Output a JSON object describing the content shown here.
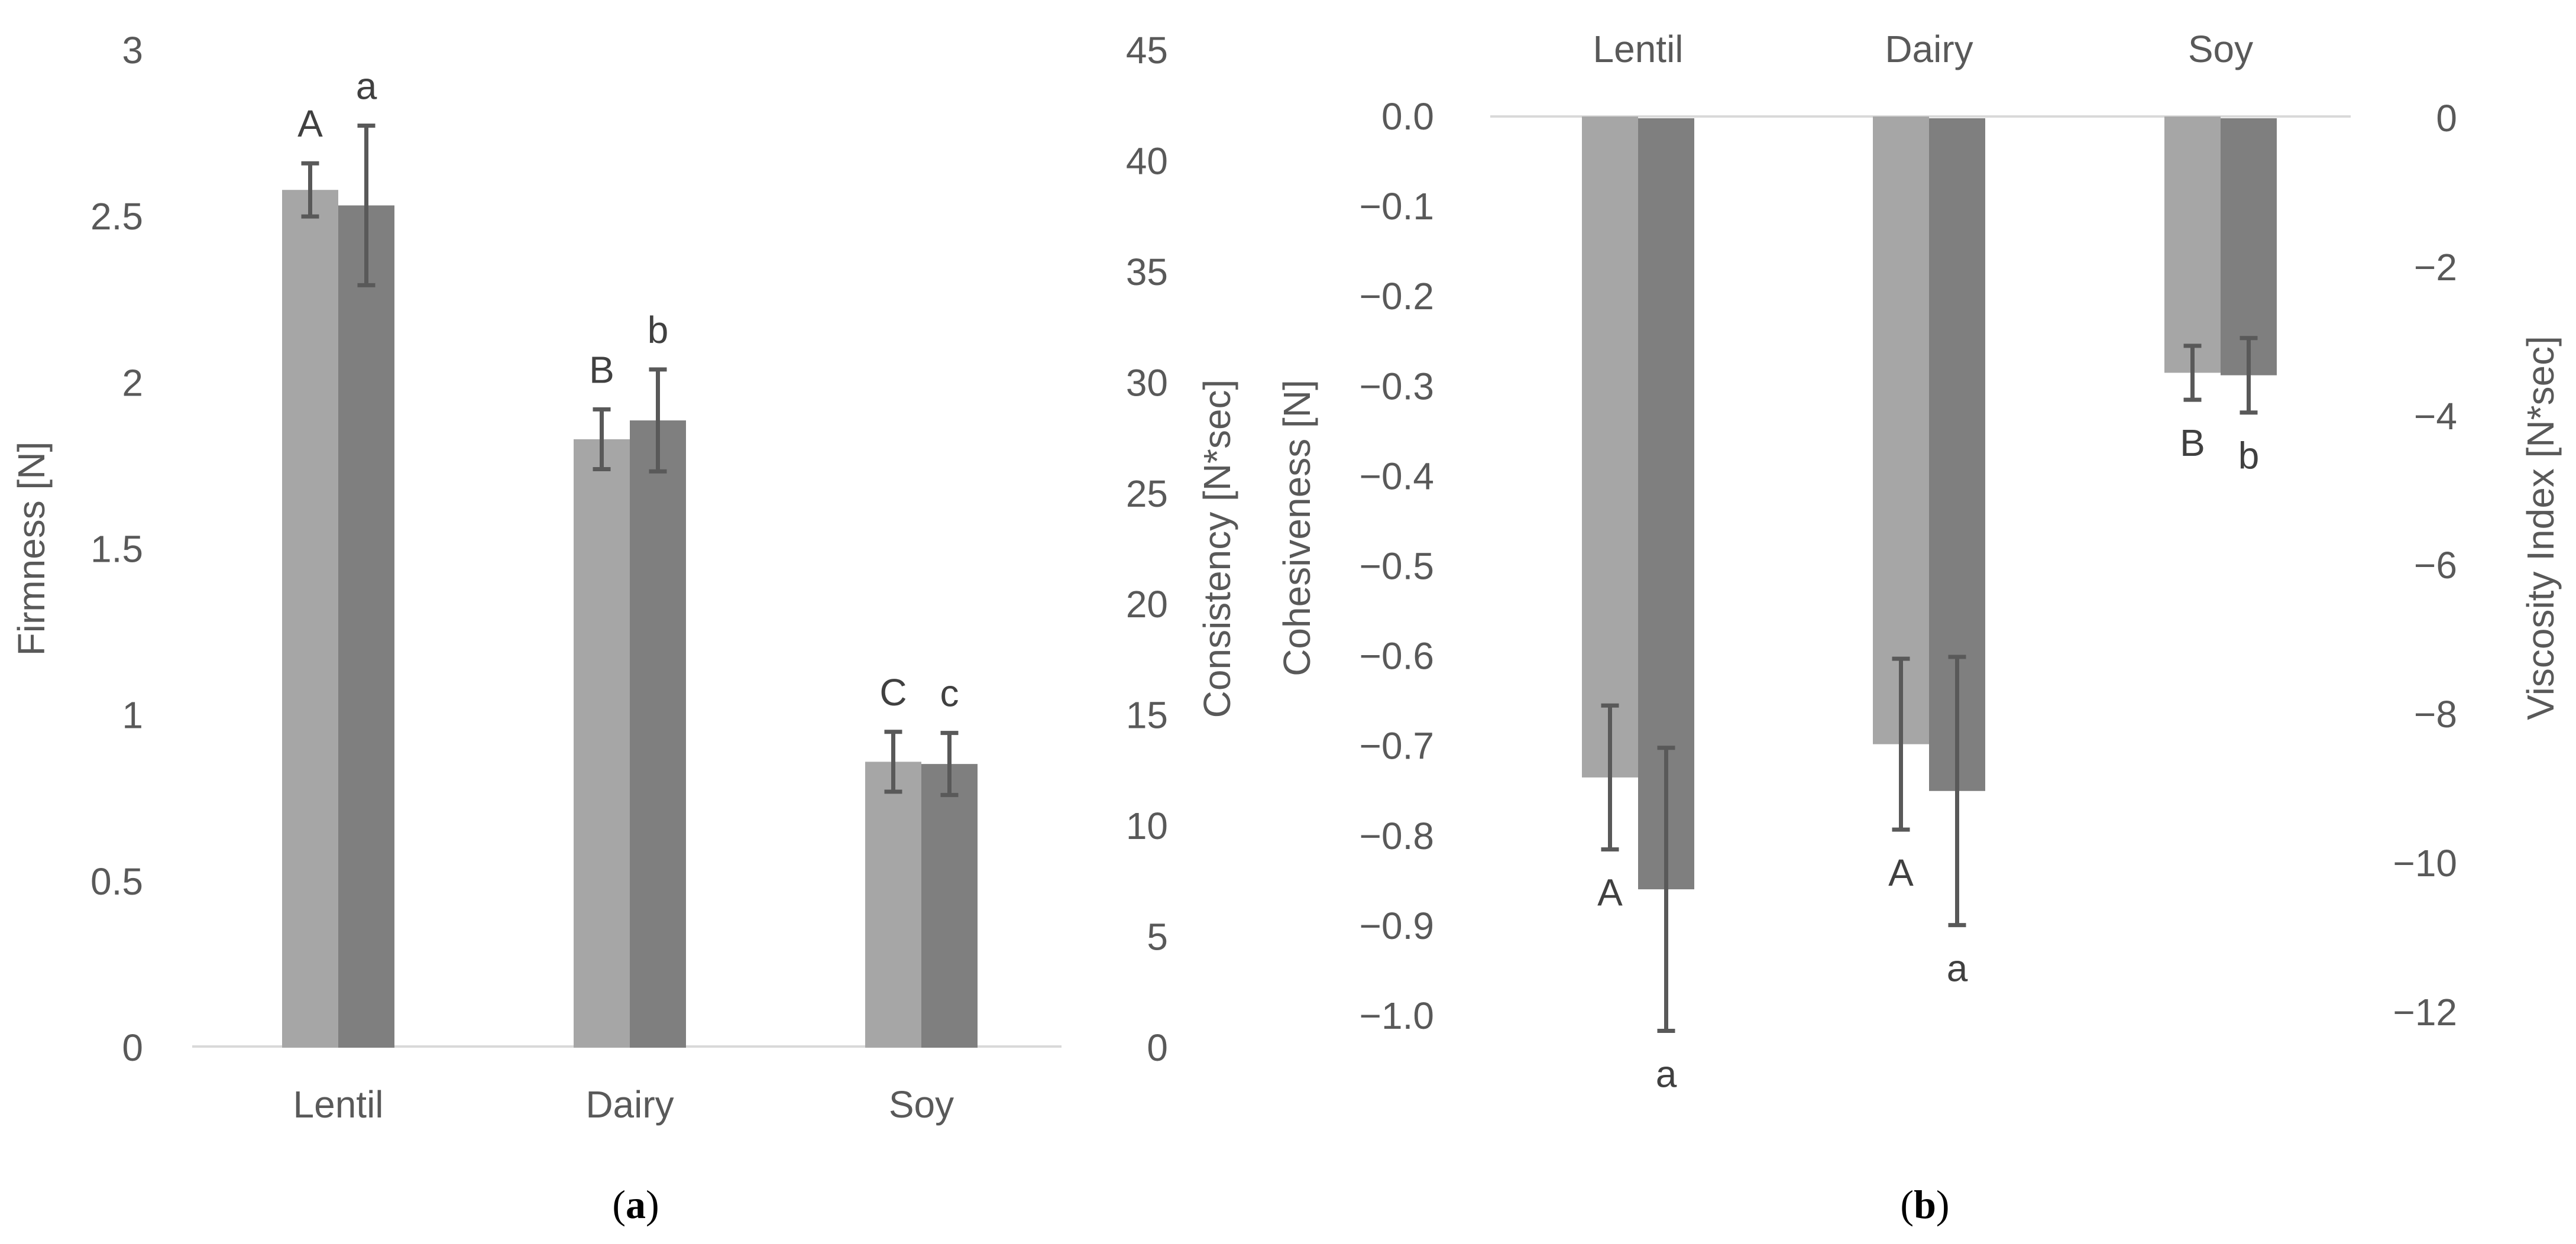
{
  "colors": {
    "series1": "#a6a6a6",
    "series2": "#7f7f7f",
    "error": "#595959",
    "axis": "#d9d9d9",
    "text": "#595959"
  },
  "chart_data": [
    {
      "type": "bar",
      "panel_label": "a",
      "categories": [
        "Lentil",
        "Dairy",
        "Soy"
      ],
      "series": [
        {
          "name": "Firmness [N]",
          "axis": "left",
          "values": [
            2.58,
            1.83,
            0.86
          ],
          "errors": [
            0.08,
            0.09,
            0.09
          ],
          "letters": [
            "A",
            "B",
            "C"
          ]
        },
        {
          "name": "Consistency [N*sec]",
          "axis": "right",
          "values": [
            38.0,
            28.3,
            12.8
          ],
          "errors": [
            3.6,
            2.3,
            1.4
          ],
          "letters": [
            "a",
            "b",
            "c"
          ]
        }
      ],
      "left_axis": {
        "label": "Firmness [N]",
        "ylim": [
          0,
          3
        ],
        "ticks": [
          "0",
          "0.5",
          "1",
          "1.5",
          "2",
          "2.5",
          "3"
        ]
      },
      "right_axis": {
        "label": "Consistency [N*sec]",
        "ylim": [
          0,
          45
        ],
        "ticks": [
          "0",
          "5",
          "10",
          "15",
          "20",
          "25",
          "30",
          "35",
          "40",
          "45"
        ]
      }
    },
    {
      "type": "bar",
      "panel_label": "b",
      "categories": [
        "Lentil",
        "Dairy",
        "Soy"
      ],
      "series": [
        {
          "name": "Cohesiveness [N]",
          "axis": "left",
          "values": [
            -0.735,
            -0.698,
            -0.285
          ],
          "errors": [
            0.08,
            0.095,
            0.03
          ],
          "letters": [
            "A",
            "A",
            "B"
          ]
        },
        {
          "name": "Viscosity Index [N*sec]",
          "axis": "right",
          "values": [
            -10.35,
            -9.03,
            -3.45
          ],
          "errors": [
            1.9,
            1.8,
            0.5
          ],
          "letters": [
            "a",
            "a",
            "b"
          ]
        }
      ],
      "left_axis": {
        "label": "Cohesiveness  [N]",
        "ylim": [
          -1.0,
          0.0
        ],
        "ticks": [
          "0.0",
          "−0.1",
          "−0.2",
          "−0.3",
          "−0.4",
          "−0.5",
          "−0.6",
          "−0.7",
          "−0.8",
          "−0.9",
          "−1.0"
        ]
      },
      "right_axis": {
        "label": "Viscosity Index [N*sec]",
        "ylim": [
          -12,
          0
        ],
        "ticks": [
          "0",
          "−2",
          "−4",
          "−6",
          "−8",
          "−10",
          "−12"
        ]
      }
    }
  ]
}
